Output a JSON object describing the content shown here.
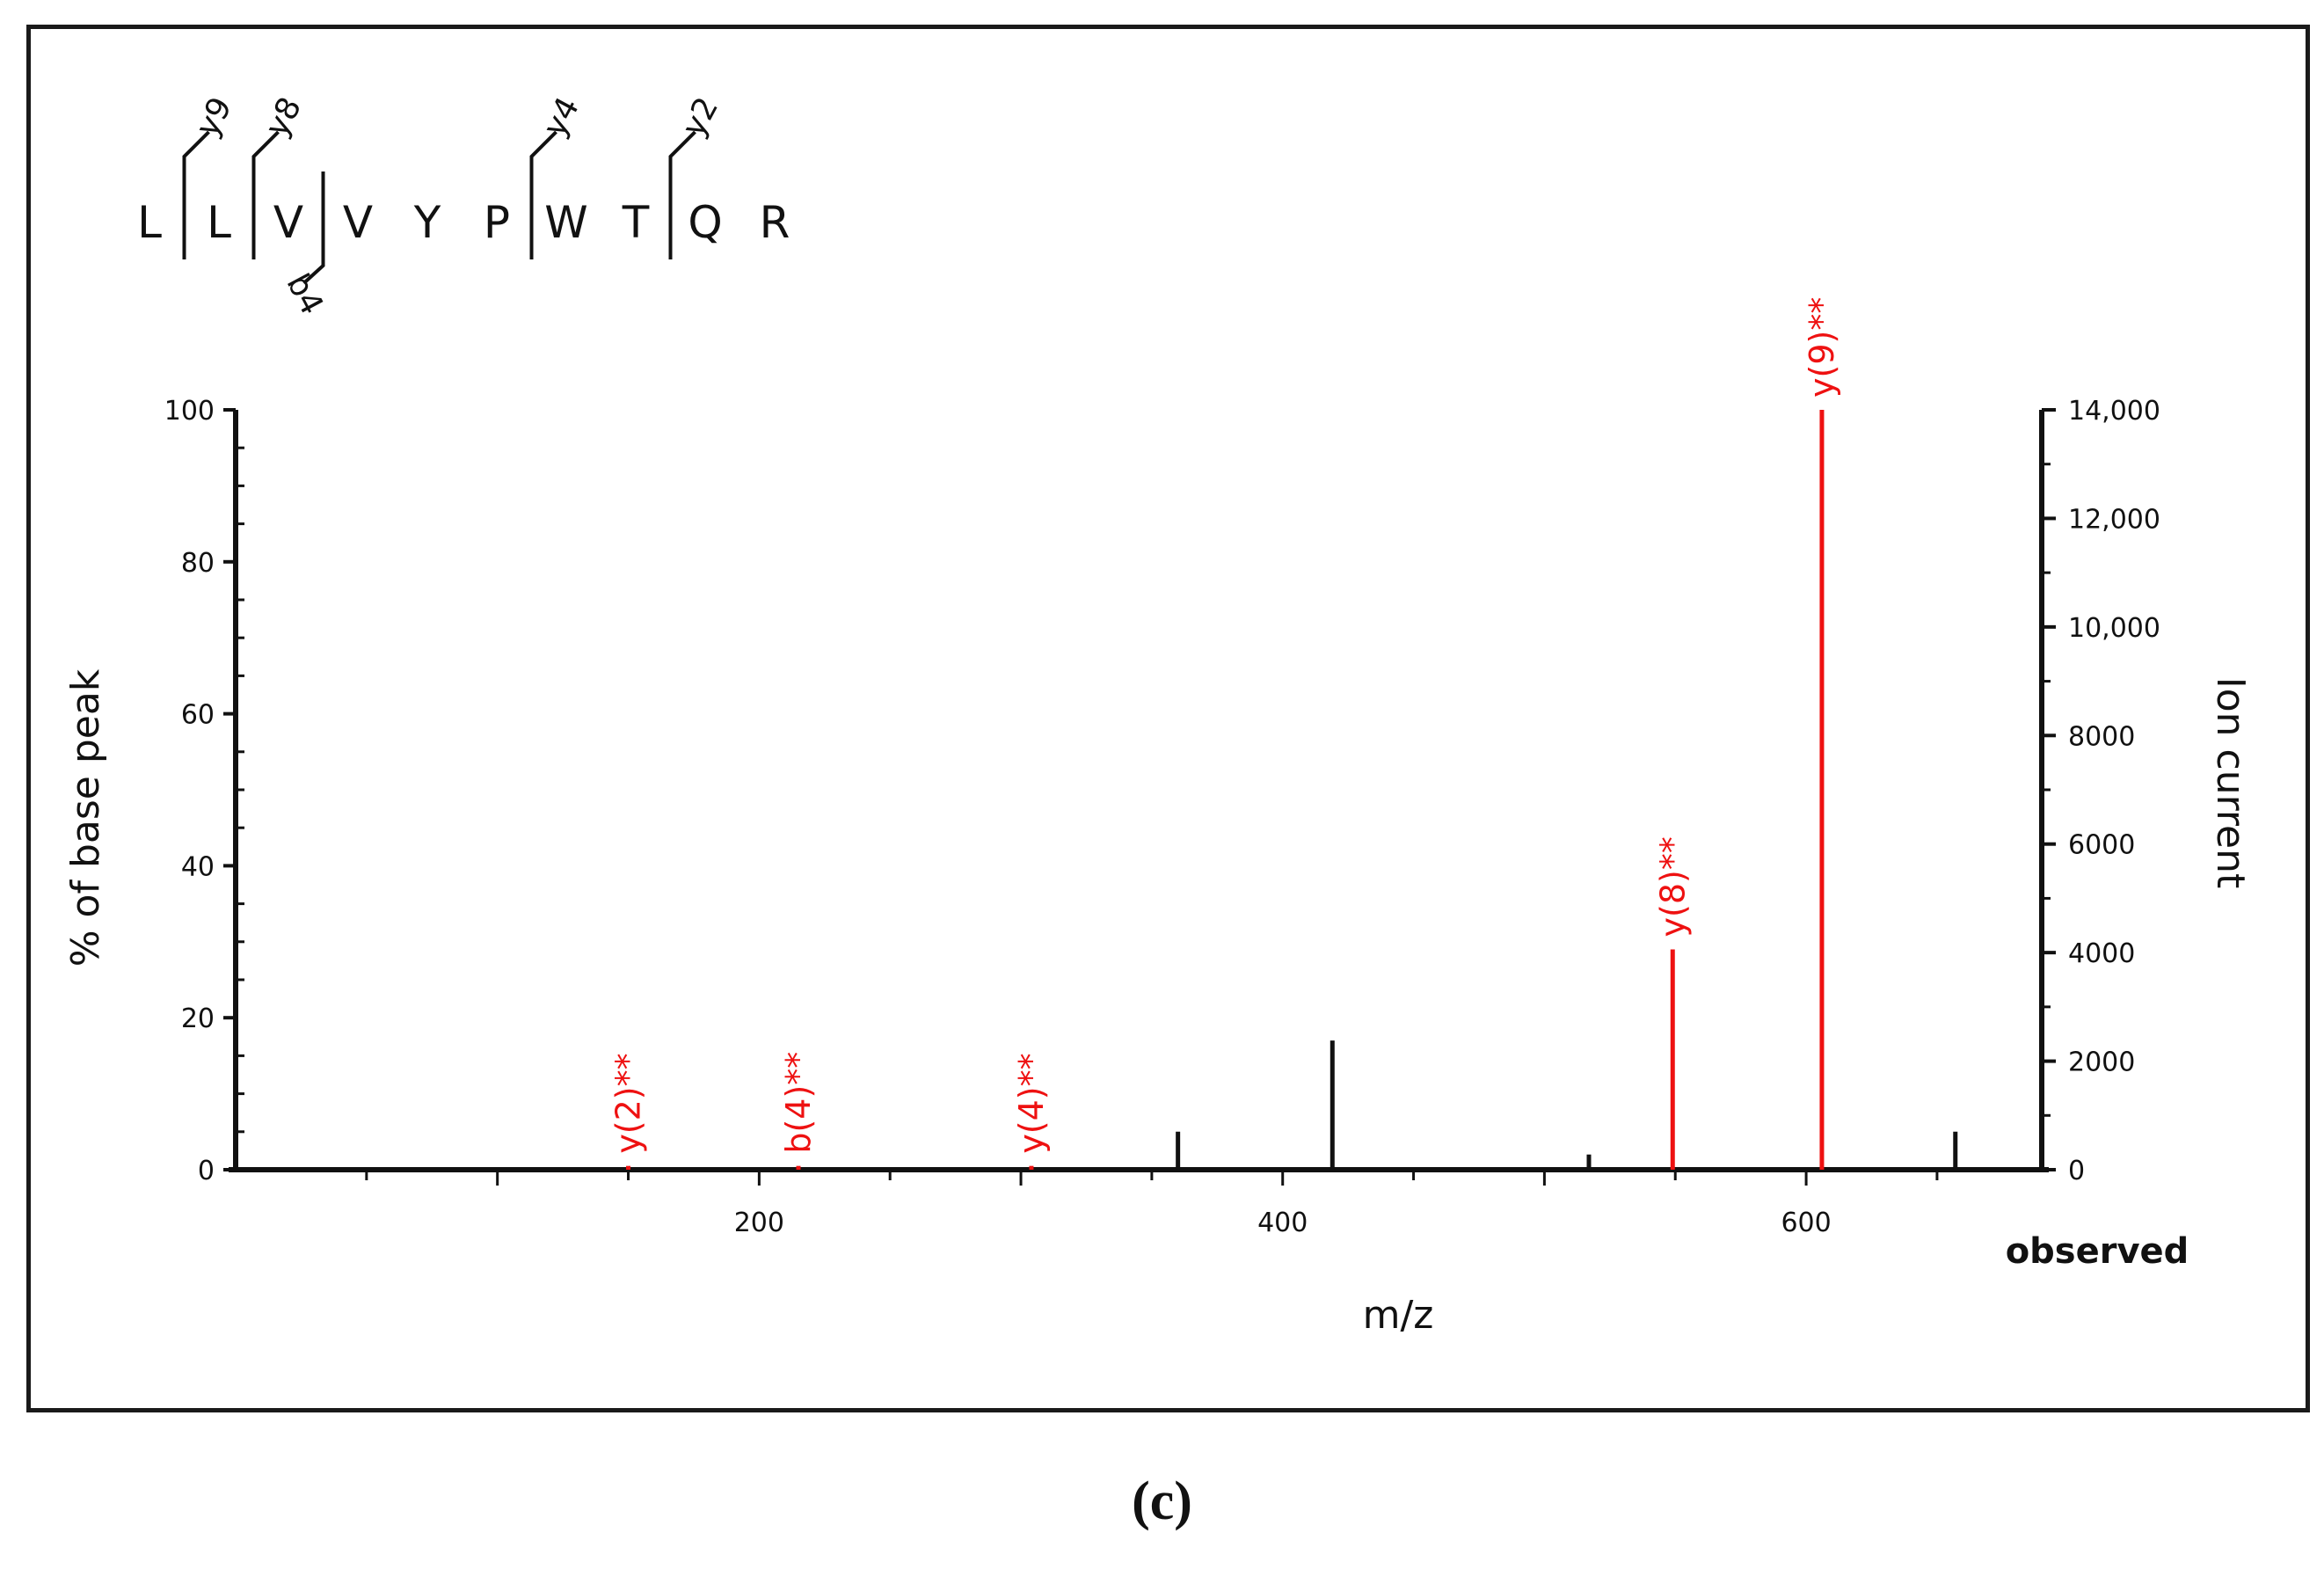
{
  "caption": "(c)",
  "chart_data": {
    "type": "bar",
    "xlabel": "m/z",
    "ylabel": "% of base peak",
    "y2label": "Ion current",
    "corner_label": "observed",
    "xlim": [
      0,
      690
    ],
    "ylim": [
      0,
      100
    ],
    "y2lim": [
      0,
      14000
    ],
    "xticks": [
      200,
      400,
      600
    ],
    "yticks": [
      0,
      20,
      40,
      60,
      80,
      100
    ],
    "y2ticks": [
      0,
      2000,
      4000,
      6000,
      8000,
      10000,
      12000,
      14000
    ],
    "y2ticklabels": [
      "0",
      "2000",
      "4000",
      "6000",
      "8000",
      "10,000",
      "12,000",
      "14,000"
    ],
    "peaks": [
      {
        "mz": 150,
        "intensity": 0.5,
        "label": "y(2)**",
        "color": "#ee1111"
      },
      {
        "mz": 215,
        "intensity": 0.5,
        "label": "b(4)**",
        "color": "#ee1111"
      },
      {
        "mz": 304,
        "intensity": 0.5,
        "label": "y(4)**",
        "color": "#ee1111"
      },
      {
        "mz": 360,
        "intensity": 5,
        "label": "",
        "color": "#111111"
      },
      {
        "mz": 419,
        "intensity": 17,
        "label": "",
        "color": "#111111"
      },
      {
        "mz": 517,
        "intensity": 2,
        "label": "",
        "color": "#111111"
      },
      {
        "mz": 549,
        "intensity": 29,
        "label": "y(8)**",
        "color": "#ee1111"
      },
      {
        "mz": 606,
        "intensity": 100,
        "label": "y(9)**",
        "color": "#ee1111"
      },
      {
        "mz": 657,
        "intensity": 5,
        "label": "",
        "color": "#111111"
      }
    ],
    "grid": false,
    "legend": "none"
  },
  "sequence": {
    "residues": [
      "L",
      "L",
      "V",
      "V",
      "Y",
      "P",
      "W",
      "T",
      "Q",
      "R"
    ],
    "fragments": [
      {
        "after": 1,
        "label": "y9",
        "side": "top"
      },
      {
        "after": 2,
        "label": "y8",
        "side": "top"
      },
      {
        "after": 3,
        "label": "b4",
        "side": "bottom"
      },
      {
        "after": 6,
        "label": "y4",
        "side": "top"
      },
      {
        "after": 8,
        "label": "y2",
        "side": "top"
      }
    ]
  }
}
